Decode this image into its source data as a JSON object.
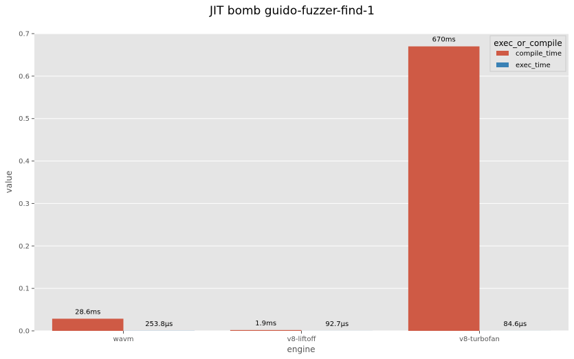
{
  "chart_data": {
    "type": "bar",
    "title": "JIT bomb guido-fuzzer-find-1",
    "xlabel": "engine",
    "ylabel": "value",
    "categories": [
      "wavm",
      "v8-liftoff",
      "v8-turbofan"
    ],
    "ylim": [
      0,
      0.7
    ],
    "yticks": [
      "0.0",
      "0.1",
      "0.2",
      "0.3",
      "0.4",
      "0.5",
      "0.6",
      "0.7"
    ],
    "grid": true,
    "legend": {
      "title": "exec_or_compile",
      "placement": "top-right"
    },
    "series": [
      {
        "name": "compile_time",
        "color": "#cf5a45",
        "values": [
          0.0286,
          0.0019,
          0.67
        ],
        "labels": [
          "28.6ms",
          "1.9ms",
          "670ms"
        ]
      },
      {
        "name": "exec_time",
        "color": "#3a81b5",
        "values": [
          0.0002538,
          9.27e-05,
          8.46e-05
        ],
        "labels": [
          "253.8µs",
          "92.7µs",
          "84.6µs"
        ]
      }
    ]
  }
}
